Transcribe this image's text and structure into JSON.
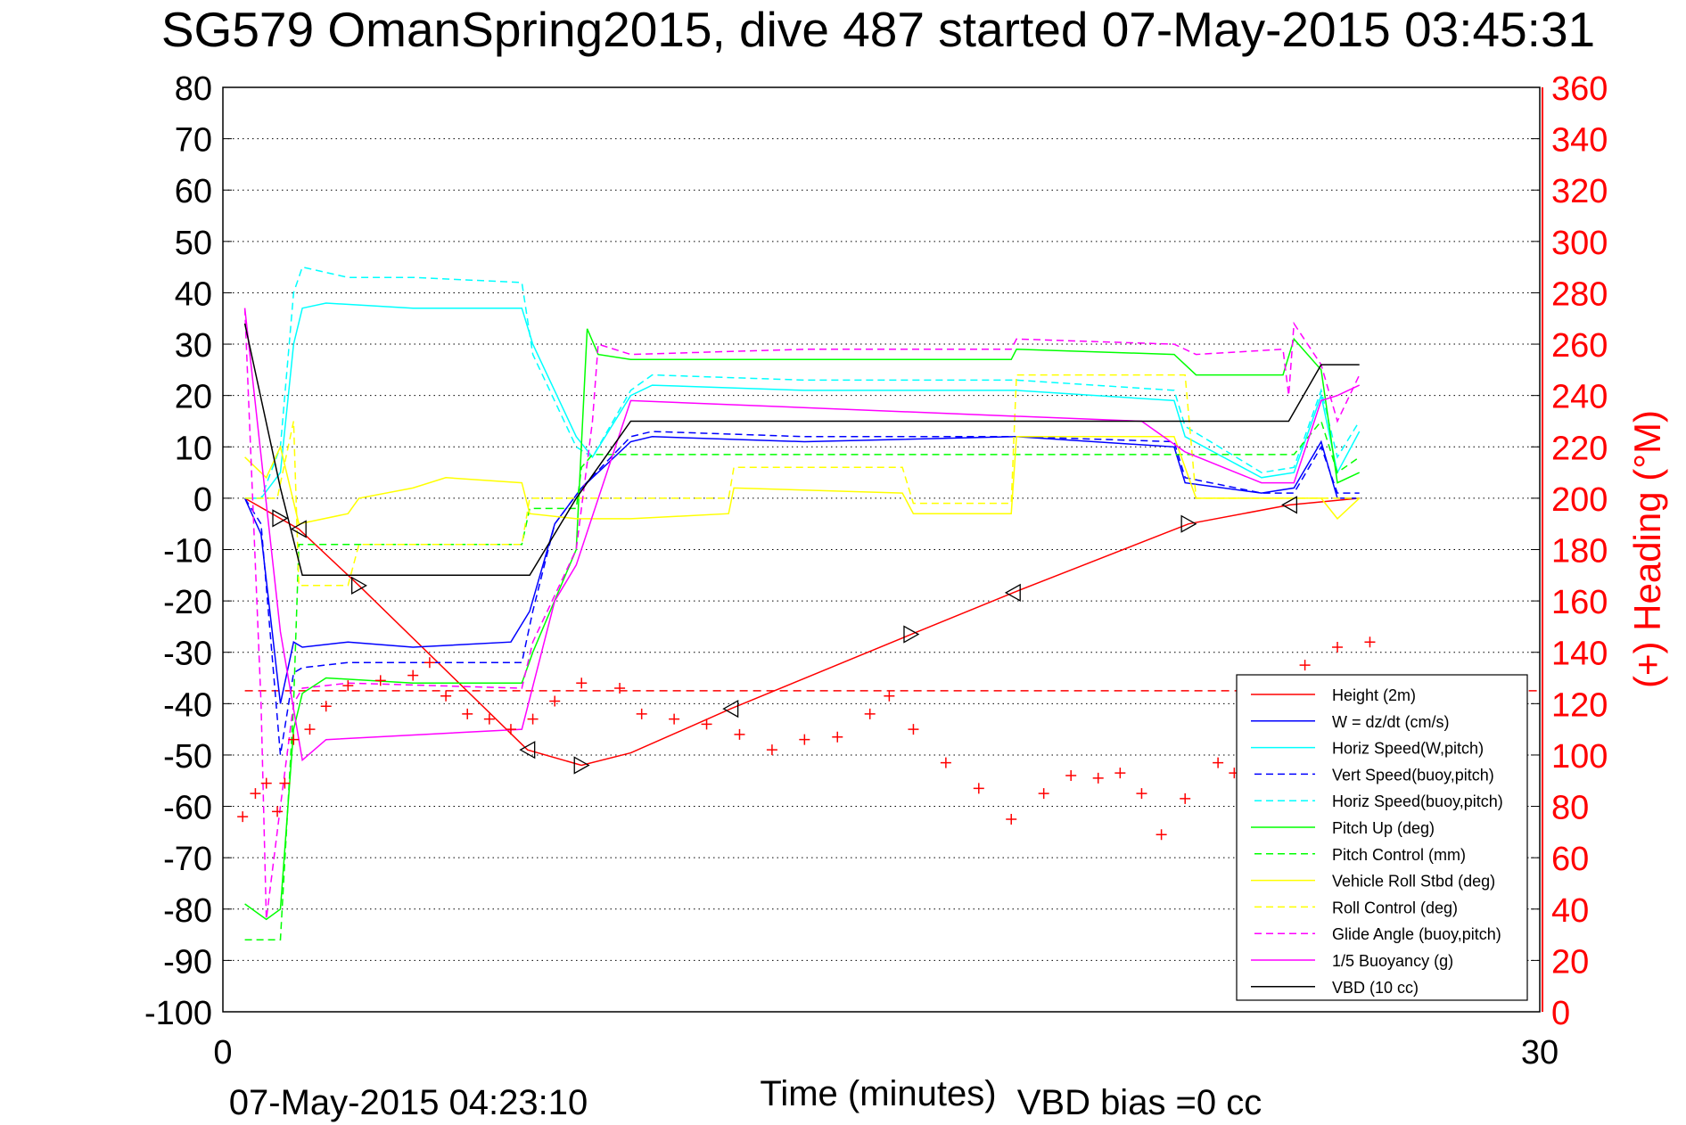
{
  "chart_data": {
    "type": "line",
    "title": "SG579 OmanSpring2015, dive 487 started 07-May-2015 03:45:31",
    "xlabel": "Time (minutes)",
    "ylabel_right": "(+) Heading (°M)",
    "footer_left": "07-May-2015 04:23:10",
    "footer_right": "VBD bias =0 cc",
    "xlim": [
      0,
      30
    ],
    "x_ticks": [
      "0",
      "30"
    ],
    "ylim_left": [
      -100,
      80
    ],
    "y_ticks_left": [
      "80",
      "70",
      "60",
      "50",
      "40",
      "30",
      "20",
      "10",
      "0",
      "-10",
      "-20",
      "-30",
      "-40",
      "-50",
      "-60",
      "-70",
      "-80",
      "-90",
      "-100"
    ],
    "ylim_right": [
      0,
      360
    ],
    "y_ticks_right": [
      "360",
      "340",
      "320",
      "300",
      "280",
      "260",
      "240",
      "220",
      "200",
      "180",
      "160",
      "140",
      "120",
      "100",
      "80",
      "60",
      "40",
      "20",
      "0"
    ],
    "grid": true,
    "legend_position": "bottom-right",
    "heading_target_right_axis": 125,
    "series": [
      {
        "name": "Height (2m)",
        "color": "#ff0000",
        "dash": false,
        "x": [
          0.5,
          1.73,
          3.1,
          6.94,
          8.17,
          9.29,
          11.57,
          15.68,
          18.0,
          22.0,
          24.3,
          25.9
        ],
        "y": [
          0,
          -6,
          -17,
          -49,
          -52,
          -49.6,
          -41,
          -26.5,
          -18.4,
          -5,
          -1.3,
          0
        ]
      },
      {
        "name": "W = dz/dt (cm/s)",
        "color": "#0000ff",
        "dash": false,
        "x": [
          0.5,
          0.87,
          1.31,
          1.61,
          1.81,
          2.85,
          4.33,
          6.56,
          6.99,
          7.56,
          8.17,
          9.29,
          9.78,
          13.25,
          18.08,
          21.67,
          21.92,
          23.66,
          24.4,
          25.02,
          25.39,
          25.89
        ],
        "y": [
          0,
          -7,
          -40,
          -28,
          -29,
          -28,
          -29,
          -28,
          -22,
          -5,
          2,
          11,
          12,
          11,
          12,
          10,
          3,
          1,
          2,
          11,
          0,
          0
        ]
      },
      {
        "name": "Horiz Speed(W,pitch)",
        "color": "#00ffff",
        "dash": false,
        "x": [
          0.5,
          0.87,
          1.31,
          1.61,
          1.81,
          2.35,
          4.33,
          6.81,
          7.06,
          8.05,
          8.42,
          9.29,
          9.78,
          13.25,
          18.08,
          21.67,
          21.92,
          23.66,
          24.4,
          25.02,
          25.39,
          25.89
        ],
        "y": [
          0,
          0,
          5,
          30,
          37,
          38,
          37,
          37,
          30,
          12,
          8,
          20,
          22,
          21,
          21,
          19,
          12,
          4,
          5,
          20,
          5,
          13
        ]
      },
      {
        "name": "Vert Speed(buoy,pitch)",
        "color": "#0000ff",
        "dash": true,
        "x": [
          0.5,
          0.87,
          1.31,
          1.61,
          1.81,
          2.85,
          6.81,
          7.06,
          7.56,
          8.17,
          9.29,
          9.78,
          13.25,
          18.08,
          21.67,
          21.92,
          23.66,
          24.4,
          25.02,
          25.39,
          25.89
        ],
        "y": [
          0,
          -5,
          -50,
          -34,
          -33,
          -32,
          -32,
          -22,
          -5,
          2,
          12,
          13,
          12,
          12,
          11,
          4,
          1,
          1,
          10,
          1,
          1
        ]
      },
      {
        "name": "Horiz Speed(buoy,pitch)",
        "color": "#00ffff",
        "dash": true,
        "x": [
          0.5,
          0.87,
          1.31,
          1.61,
          1.81,
          2.85,
          4.33,
          6.81,
          7.06,
          8.05,
          8.42,
          9.29,
          9.78,
          13.25,
          18.08,
          21.67,
          21.92,
          23.66,
          24.4,
          25.02,
          25.39,
          25.89
        ],
        "y": [
          0,
          0,
          10,
          40,
          45,
          43,
          43,
          42,
          28,
          10,
          8,
          21,
          24,
          23,
          23,
          21,
          14,
          5,
          6,
          21,
          8,
          15
        ]
      },
      {
        "name": "Pitch Up (deg)",
        "color": "#00ff00",
        "dash": false,
        "x": [
          0.5,
          0.99,
          1.31,
          1.61,
          1.81,
          2.35,
          4.33,
          6.81,
          7.06,
          8.05,
          8.3,
          8.55,
          9.29,
          13.25,
          17.96,
          18.08,
          21.67,
          22.17,
          24.15,
          24.4,
          25.02,
          25.39,
          25.89
        ],
        "y": [
          -79,
          -82,
          -80,
          -45,
          -38,
          -35,
          -36,
          -36,
          -30,
          -10,
          33,
          28,
          27,
          27,
          27,
          29,
          28,
          24,
          24,
          31,
          25,
          3,
          5
        ]
      },
      {
        "name": "Pitch Control (mm)",
        "color": "#00ff00",
        "dash": true,
        "x": [
          0.5,
          1.31,
          1.61,
          1.73,
          6.81,
          6.99,
          8.05,
          8.17,
          8.42,
          24.28,
          24.4,
          25.02,
          25.39,
          25.89
        ],
        "y": [
          -86,
          -86,
          -40,
          -9,
          -9,
          -2,
          -2,
          6,
          8.5,
          8.5,
          8.5,
          15,
          5,
          8
        ]
      },
      {
        "name": "Vehicle Roll Stbd (deg)",
        "color": "#ffff00",
        "dash": false,
        "x": [
          0.5,
          0.99,
          1.31,
          1.73,
          2.85,
          3.1,
          4.33,
          5.08,
          6.81,
          6.99,
          8.05,
          9.29,
          11.52,
          11.64,
          15.48,
          15.73,
          17.71,
          17.96,
          18.08,
          21.67,
          22.17,
          25.02,
          25.39,
          25.89
        ],
        "y": [
          8,
          4,
          10,
          -5,
          -3,
          0,
          2,
          4,
          3,
          -3,
          -4,
          -4,
          -3,
          2,
          1,
          -3,
          -3,
          -3,
          12,
          12,
          0,
          0,
          -4,
          0
        ]
      },
      {
        "name": "Roll Control (deg)",
        "color": "#ffff00",
        "dash": true,
        "x": [
          0.5,
          1.24,
          1.61,
          1.73,
          2.85,
          3.1,
          6.81,
          6.99,
          8.05,
          11.52,
          11.64,
          15.48,
          15.73,
          17.96,
          18.08,
          21.92,
          22.17,
          25.89
        ],
        "y": [
          0,
          0,
          15,
          -17,
          -17,
          -9,
          -9,
          0,
          0,
          0,
          6,
          6,
          -1,
          -1,
          24,
          24,
          0,
          0
        ]
      },
      {
        "name": "Glide Angle (buoy,pitch)",
        "color": "#ff00ff",
        "dash": true,
        "x": [
          0.5,
          0.87,
          0.99,
          1.31,
          1.61,
          1.81,
          2.85,
          6.81,
          7.06,
          8.05,
          8.42,
          8.55,
          9.29,
          13.25,
          17.96,
          18.08,
          21.67,
          22.17,
          24.15,
          24.28,
          24.4,
          25.02,
          25.39,
          25.89
        ],
        "y": [
          37,
          -40,
          -82,
          -60,
          -40,
          -37,
          -36,
          -37,
          -28,
          -10,
          15,
          30,
          28,
          29,
          29,
          31,
          30,
          28,
          29,
          20,
          34,
          26,
          15,
          24
        ]
      },
      {
        "name": "1/5 Buoyancy (g)",
        "color": "#ff00ff",
        "dash": false,
        "x": [
          0.5,
          1.31,
          1.81,
          2.35,
          6.81,
          7.56,
          8.05,
          9.29,
          17.96,
          20.93,
          21.92,
          23.66,
          24.4,
          25.02,
          25.39,
          25.89
        ],
        "y": [
          37,
          -26,
          -51,
          -47,
          -45,
          -20,
          -13,
          19,
          16,
          15,
          9,
          3,
          3,
          19,
          20,
          22
        ]
      },
      {
        "name": "VBD (10 cc)",
        "color": "#000000",
        "dash": false,
        "x": [
          0.5,
          1.31,
          1.81,
          6.99,
          8.05,
          9.29,
          24.28,
          25.02,
          25.89
        ],
        "y": [
          34,
          2,
          -15,
          -15,
          0,
          15,
          15,
          26,
          26
        ]
      }
    ],
    "heading": {
      "name": "Heading",
      "color": "#ff0000",
      "marker": "+",
      "x": [
        0.45,
        0.74,
        0.99,
        1.24,
        1.41,
        1.61,
        1.98,
        2.35,
        2.85,
        3.59,
        4.33,
        4.71,
        5.08,
        5.57,
        6.07,
        6.56,
        7.06,
        7.56,
        8.17,
        9.04,
        9.54,
        10.28,
        11.02,
        11.77,
        12.51,
        13.25,
        14.0,
        14.74,
        15.18,
        15.73,
        16.47,
        17.22,
        17.96,
        18.7,
        19.32,
        19.94,
        20.44,
        20.93,
        21.38,
        21.92,
        22.67,
        23.04,
        24.65,
        25.39,
        26.13
      ],
      "y": [
        76,
        85,
        89,
        78,
        89,
        106,
        110,
        119,
        127,
        129,
        131,
        136,
        123,
        116,
        114,
        110,
        114,
        121,
        128,
        126,
        116,
        114,
        112,
        108,
        102,
        106,
        107,
        116,
        123,
        110,
        97,
        87,
        75,
        85,
        92,
        91,
        93,
        85,
        69,
        83,
        97,
        93,
        135,
        142,
        144
      ]
    },
    "triangle_markers_x": [
      1.3,
      1.73,
      3.1,
      6.94,
      8.17,
      11.57,
      15.68,
      18.0,
      22.0,
      24.3
    ]
  }
}
